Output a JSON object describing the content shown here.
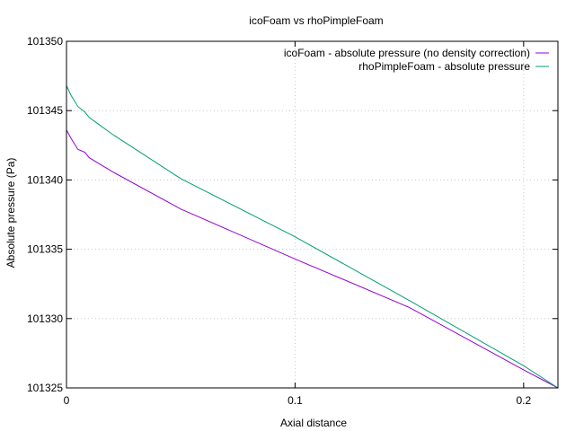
{
  "chart_data": {
    "type": "line",
    "title": "icoFoam vs rhoPimpleFoam",
    "xlabel": "Axial distance",
    "ylabel": "Absolute pressure (Pa)",
    "xlim": [
      0,
      0.215
    ],
    "ylim": [
      101325,
      101350
    ],
    "xticks": [
      0,
      0.1,
      0.2
    ],
    "xtick_labels": [
      "0",
      "0.1",
      "0.2"
    ],
    "yticks": [
      101325,
      101330,
      101335,
      101340,
      101345,
      101350
    ],
    "ytick_labels": [
      "101325",
      "101330",
      "101335",
      "101340",
      "101345",
      "101350"
    ],
    "grid": true,
    "legend_position": "top-right",
    "series": [
      {
        "name": "icoFoam - absolute pressure (no density correction)",
        "color": "#9400d3",
        "x": [
          0,
          0.002,
          0.005,
          0.008,
          0.01,
          0.015,
          0.02,
          0.05,
          0.1,
          0.15,
          0.2,
          0.215
        ],
        "y": [
          101343.6,
          101343.0,
          101342.2,
          101342.0,
          101341.6,
          101341.1,
          101340.6,
          101337.9,
          101334.3,
          101330.8,
          101326.3,
          101325.0
        ]
      },
      {
        "name": "rhoPimpleFoam - absolute pressure",
        "color": "#009e73",
        "x": [
          0,
          0.002,
          0.005,
          0.008,
          0.01,
          0.015,
          0.02,
          0.05,
          0.1,
          0.15,
          0.2,
          0.215
        ],
        "y": [
          101346.8,
          101346.1,
          101345.3,
          101344.9,
          101344.5,
          101343.9,
          101343.3,
          101340.1,
          101335.9,
          101331.3,
          101326.6,
          101325.0
        ]
      }
    ]
  }
}
